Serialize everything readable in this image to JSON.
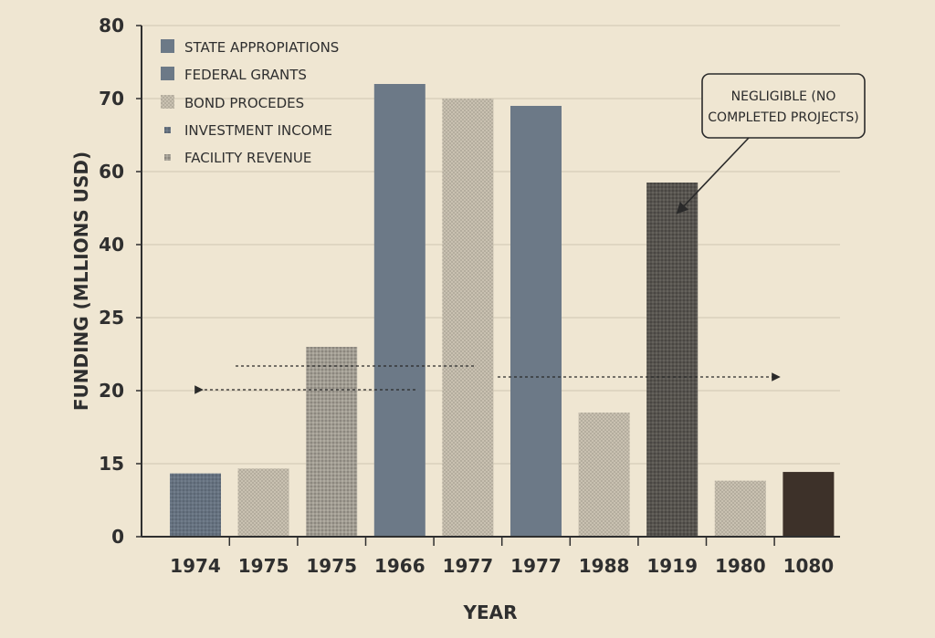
{
  "chart_data": {
    "type": "bar",
    "title": "",
    "xlabel": "YEAR",
    "ylabel": "FUNDING (MLLIONS USD)",
    "y_ticks": [
      "0",
      "15",
      "20",
      "25",
      "40",
      "60",
      "70",
      "80"
    ],
    "y_tick_values": [
      0,
      15,
      20,
      25,
      40,
      60,
      70,
      80
    ],
    "categories": [
      "1974",
      "1975",
      "1975",
      "1966",
      "1977",
      "1977",
      "1988",
      "1919",
      "1980",
      "1080"
    ],
    "values": [
      13,
      14,
      23,
      72,
      70,
      69,
      18.5,
      57,
      11.5,
      13.3
    ],
    "bar_series": [
      "Investment Income",
      "Bond Procedes",
      "Facility Revenue",
      "State Appropiations",
      "Bond Procedes",
      "Federal Grants",
      "Bond Procedes",
      "Investment Income",
      "Bond Procedes",
      "Dark"
    ],
    "grid": true,
    "legend_position": "top-left",
    "legend": [
      {
        "label": "STATE APPROPIATIONS",
        "color": "#6c7987",
        "pattern": "solid"
      },
      {
        "label": "FEDERAL GRANTS",
        "color": "#6c7987",
        "pattern": "solid"
      },
      {
        "label": "BOND PROCEDES",
        "color": "#bdb5a6",
        "pattern": "dots"
      },
      {
        "label": "INVESTMENT INCOME",
        "color": "#6a7683",
        "pattern": "dots-small"
      },
      {
        "label": "FACILITY REVENUE",
        "color": "#9a958a",
        "pattern": "dots-small"
      }
    ],
    "annotation": "NEGLIGIBLE (NO COMPLETED PROJECTS)",
    "annotation_lines": [
      "NEGLIGIBLE (NO",
      "COMPLETED PROJECTS)"
    ],
    "colors": {
      "background": "#efe6d2",
      "grid": "#cfc6b3",
      "axis": "#2f2f2f",
      "slate": "#6c7987",
      "slate_dotted": "#5f6b78",
      "beige_dotted": "#bdb5a6",
      "gray_dotted": "#918d84",
      "dark_dotted": "#55524d",
      "dark_brown": "#3d3129"
    }
  }
}
